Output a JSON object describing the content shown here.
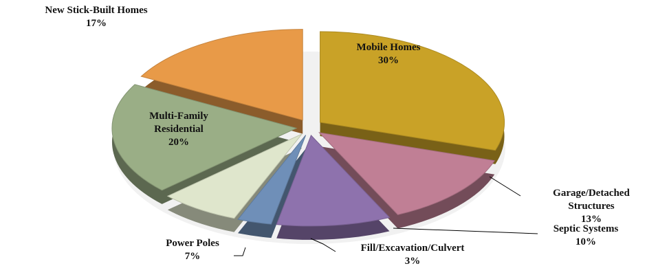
{
  "chart_data": {
    "type": "pie",
    "categories": [
      "Mobile Homes",
      "Garage/Detached Structures",
      "Septic Systems",
      "Fill/Excavation/Culvert",
      "Power Poles",
      "Multi-Family Residential",
      "New Stick-Built Homes"
    ],
    "values": [
      30,
      13,
      10,
      3,
      7,
      20,
      17
    ],
    "value_labels": [
      "30%",
      "13%",
      "10%",
      "3%",
      "7%",
      "20%",
      "17%"
    ],
    "colors": [
      "#c9a227",
      "#c07f95",
      "#8e72ad",
      "#6f8fb8",
      "#dfe6cc",
      "#9aae86",
      "#e89a48"
    ]
  }
}
